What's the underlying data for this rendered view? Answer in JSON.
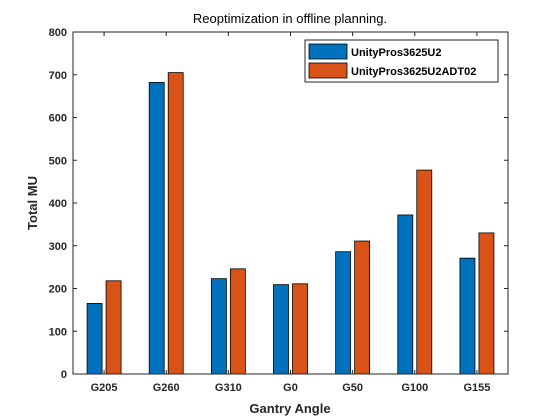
{
  "chart_data": {
    "type": "bar",
    "title": "Reoptimization in offline planning.",
    "xlabel": "Gantry Angle",
    "ylabel": "Total MU",
    "categories": [
      "G205",
      "G260",
      "G310",
      "G0",
      "G50",
      "G100",
      "G155"
    ],
    "ylim": [
      0,
      800
    ],
    "yticks": [
      0,
      100,
      200,
      300,
      400,
      500,
      600,
      700,
      800
    ],
    "grid": false,
    "legend_position": "top-right",
    "series": [
      {
        "name": "UnityPros3625U2",
        "color": "#0072BD",
        "values": [
          165,
          682,
          223,
          209,
          286,
          372,
          271
        ]
      },
      {
        "name": "UnityPros3625U2ADT02",
        "color": "#D95319",
        "values": [
          218,
          705,
          246,
          211,
          311,
          477,
          330
        ]
      }
    ]
  }
}
